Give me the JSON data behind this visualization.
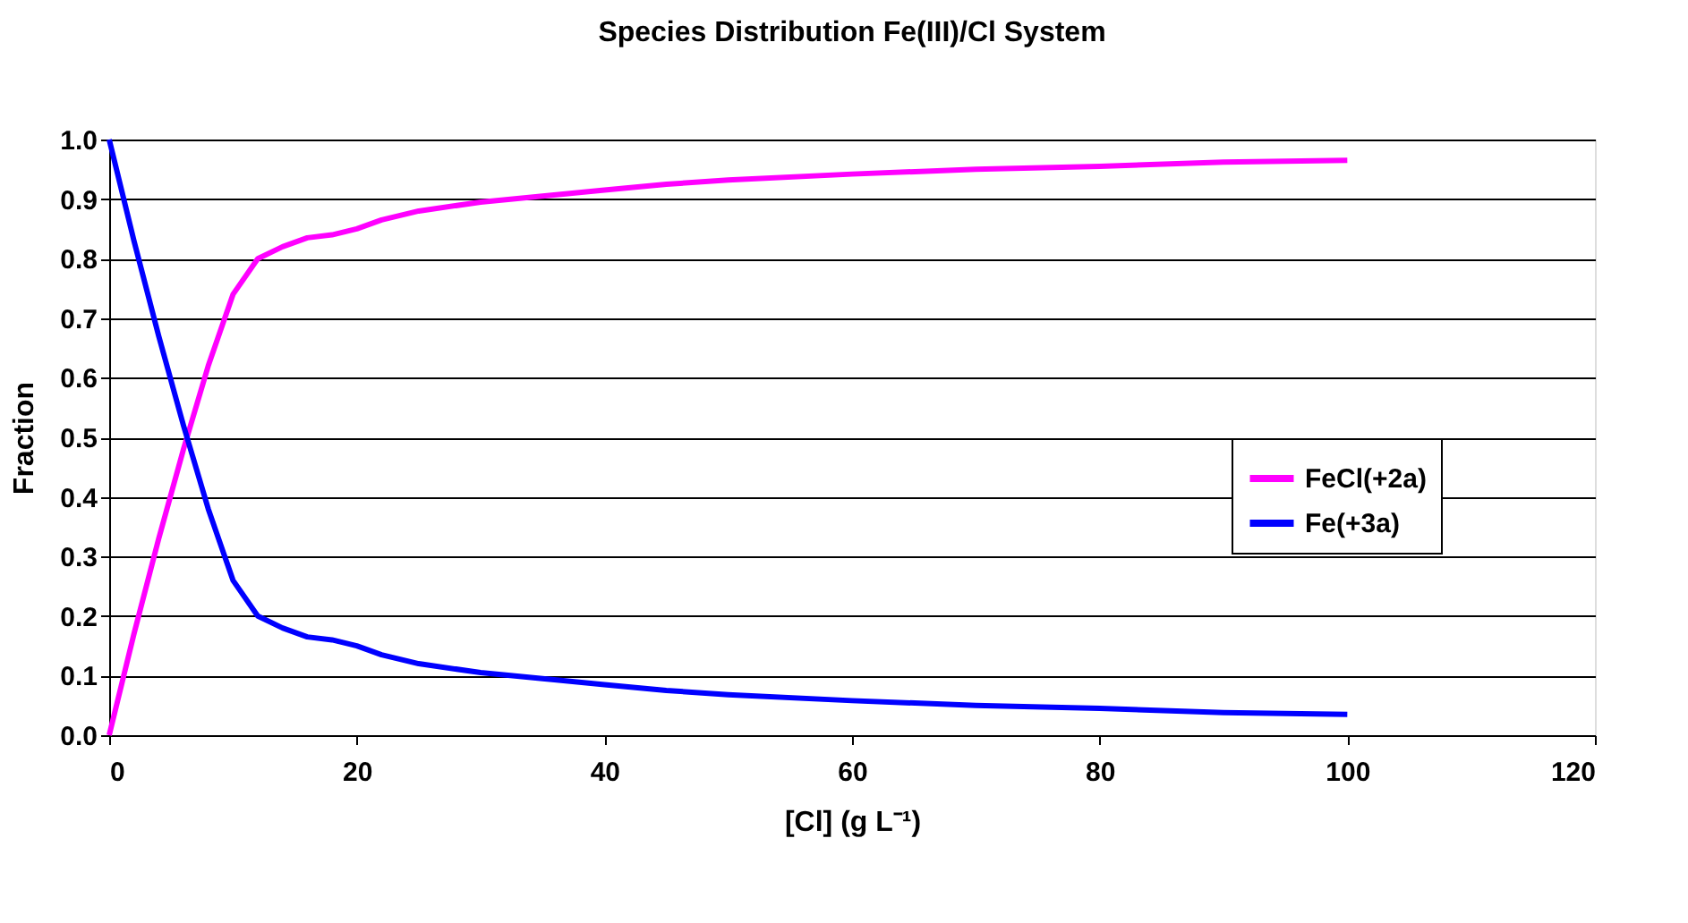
{
  "chart_data": {
    "type": "line",
    "title": "Species Distribution Fe(III)/Cl System",
    "xlabel": "[Cl] (g L⁻¹)",
    "ylabel": "Fraction",
    "x": [
      0,
      2,
      4,
      6,
      8,
      10,
      12,
      14,
      16,
      18,
      20,
      22,
      25,
      30,
      35,
      40,
      45,
      50,
      60,
      70,
      80,
      90,
      100
    ],
    "series": [
      {
        "name": "FeCl(+2a)",
        "color": "#ff00ff",
        "values": [
          0.0,
          0.17,
          0.33,
          0.48,
          0.62,
          0.74,
          0.8,
          0.82,
          0.835,
          0.84,
          0.85,
          0.865,
          0.88,
          0.895,
          0.905,
          0.915,
          0.925,
          0.932,
          0.942,
          0.95,
          0.955,
          0.962,
          0.965
        ]
      },
      {
        "name": "Fe(+3a)",
        "color": "#0000ff",
        "values": [
          1.0,
          0.83,
          0.67,
          0.52,
          0.38,
          0.26,
          0.2,
          0.18,
          0.165,
          0.16,
          0.15,
          0.135,
          0.12,
          0.105,
          0.095,
          0.085,
          0.075,
          0.068,
          0.058,
          0.05,
          0.045,
          0.038,
          0.035
        ]
      }
    ],
    "xlim": [
      0,
      120
    ],
    "xticks": [
      0,
      20,
      40,
      60,
      80,
      100,
      120
    ],
    "ylim": [
      0,
      1
    ],
    "yticks": [
      {
        "value": 0,
        "label": "0.0"
      },
      0.1,
      0.2,
      0.3,
      0.4,
      0.5,
      0.6,
      0.7,
      0.8,
      0.9,
      {
        "value": 1,
        "label": "1.0"
      }
    ],
    "grid": "y",
    "legend": "right",
    "marker": "none",
    "line_style": "solid"
  }
}
